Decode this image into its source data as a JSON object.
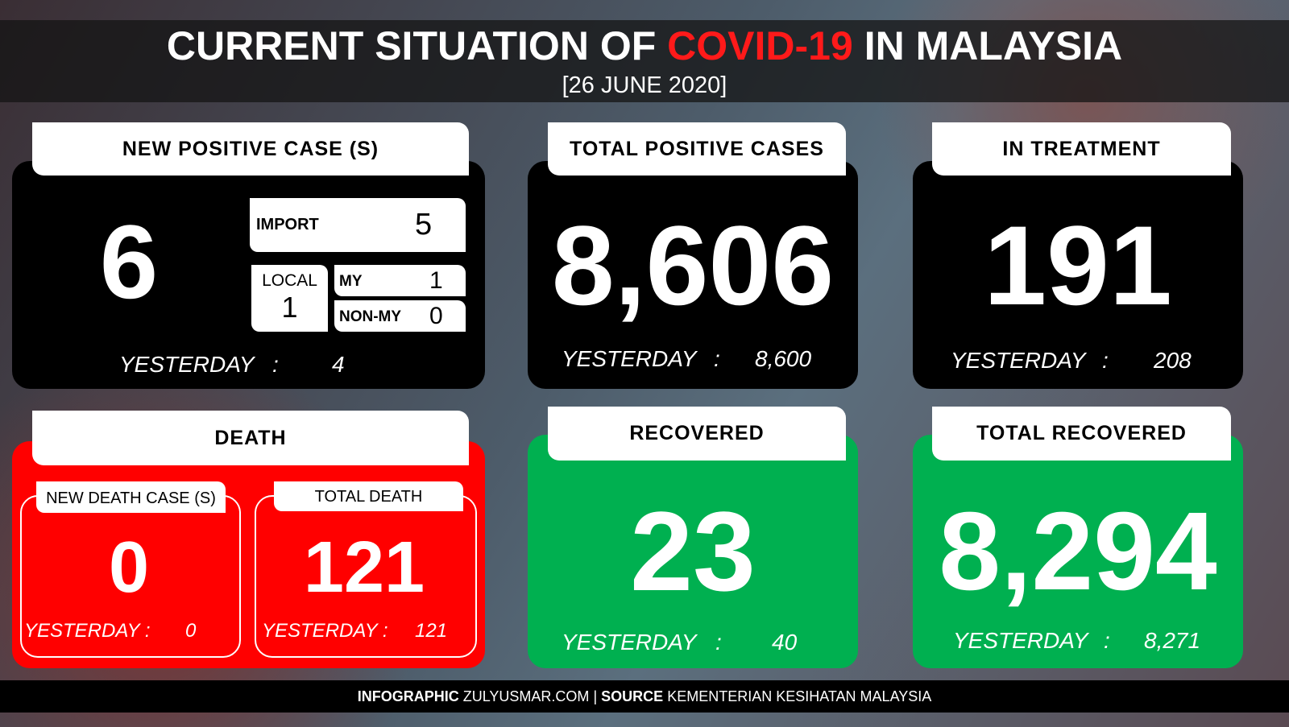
{
  "header": {
    "title_before": "CURRENT SITUATION OF",
    "title_highlight": "COVID-19",
    "title_after": "IN MALAYSIA",
    "date": "[26 JUNE 2020]"
  },
  "new_positive": {
    "title": "NEW POSITIVE CASE (S)",
    "value": "6",
    "import_label": "IMPORT",
    "import_value": "5",
    "local_label": "LOCAL",
    "local_value": "1",
    "my_label": "MY",
    "my_value": "1",
    "nonmy_label": "NON-MY",
    "nonmy_value": "0",
    "yesterday_label": "YESTERDAY",
    "separator": ":",
    "yesterday_value": "4"
  },
  "total_positive": {
    "title": "TOTAL POSITIVE CASES",
    "value": "8,606",
    "yesterday_label": "YESTERDAY",
    "separator": ":",
    "yesterday_value": "8,600"
  },
  "in_treatment": {
    "title": "IN TREATMENT",
    "value": "191",
    "yesterday_label": "YESTERDAY",
    "separator": ":",
    "yesterday_value": "208"
  },
  "death": {
    "title": "DEATH",
    "new": {
      "title": "NEW DEATH CASE (S)",
      "value": "0",
      "yesterday_label": "YESTERDAY :",
      "yesterday_value": "0"
    },
    "total": {
      "title": "TOTAL DEATH",
      "value": "121",
      "yesterday_label": "YESTERDAY :",
      "yesterday_value": "121"
    }
  },
  "recovered": {
    "title": "RECOVERED",
    "value": "23",
    "yesterday_label": "YESTERDAY",
    "separator": ":",
    "yesterday_value": "40"
  },
  "total_recovered": {
    "title": "TOTAL RECOVERED",
    "value": "8,294",
    "yesterday_label": "YESTERDAY",
    "separator": ":",
    "yesterday_value": "8,271"
  },
  "footer": {
    "label1": "INFOGRAPHIC",
    "text1": "ZULYUSMAR.COM",
    "divider": "|",
    "label2": "SOURCE",
    "text2": "KEMENTERIAN KESIHATAN MALAYSIA"
  }
}
